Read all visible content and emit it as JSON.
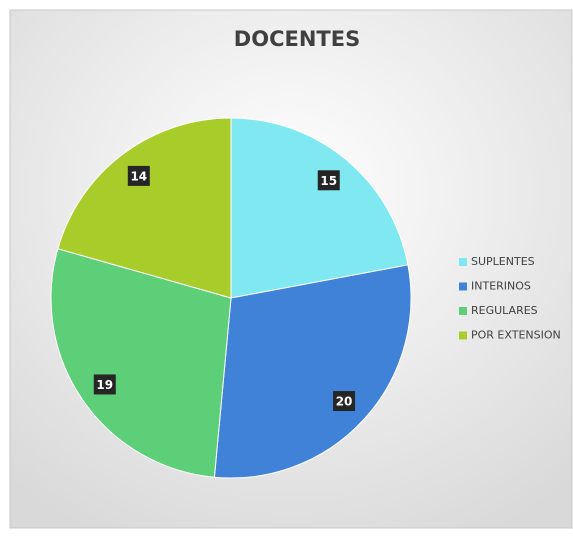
{
  "chart_data": {
    "type": "pie",
    "title": "DOCENTES",
    "categories": [
      "SUPLENTES",
      "INTERINOS",
      "REGULARES",
      "POR EXTENSION"
    ],
    "values": [
      15,
      20,
      19,
      14
    ],
    "colors": [
      "#7fe8f0",
      "#3f82d8",
      "#5ccf78",
      "#a8cd2b"
    ],
    "legend": "right"
  }
}
